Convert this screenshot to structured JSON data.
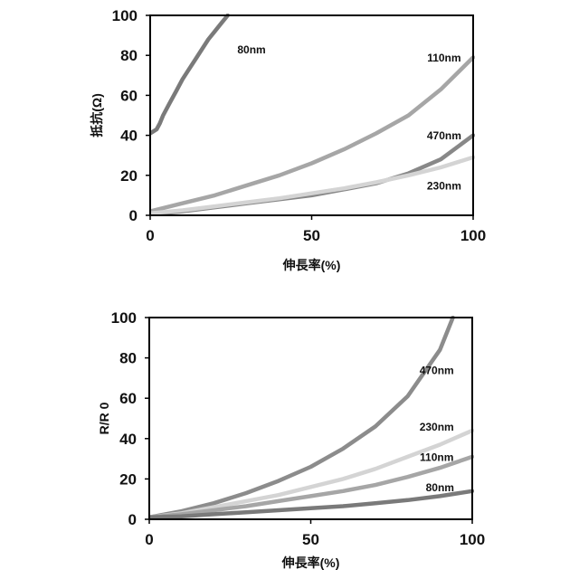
{
  "chart_data": [
    {
      "type": "line",
      "title": "",
      "xlabel": "伸長率(%)",
      "ylabel": "抵抗(Ω)",
      "xlim": [
        0,
        100
      ],
      "ylim": [
        0,
        100
      ],
      "xticks": [
        "0",
        "50",
        "100"
      ],
      "yticks": [
        "0",
        "20",
        "40",
        "60",
        "80",
        "100"
      ],
      "grid": false,
      "legend": "inline labels",
      "series": [
        {
          "name": "80nm",
          "color": "#7a7a7a",
          "x": [
            0,
            1,
            2,
            3,
            4,
            6,
            8,
            10,
            12,
            14,
            16,
            18,
            20,
            22,
            24
          ],
          "y": [
            41,
            42,
            43,
            46,
            50,
            56,
            62,
            68,
            73,
            78,
            83,
            88,
            92,
            96,
            100
          ]
        },
        {
          "name": "110nm",
          "color": "#a6a6a6",
          "x": [
            0,
            10,
            20,
            30,
            40,
            50,
            60,
            70,
            80,
            90,
            100
          ],
          "y": [
            2,
            6,
            10,
            15,
            20,
            26,
            33,
            41,
            50,
            63,
            79
          ]
        },
        {
          "name": "470nm",
          "color": "#888888",
          "x": [
            0,
            10,
            20,
            30,
            40,
            50,
            60,
            70,
            80,
            90,
            100
          ],
          "y": [
            0.5,
            2,
            4,
            6,
            8,
            10,
            13,
            16,
            21,
            28,
            40
          ]
        },
        {
          "name": "230nm",
          "color": "#d4d4d4",
          "x": [
            0,
            10,
            20,
            30,
            40,
            50,
            60,
            70,
            80,
            90,
            100
          ],
          "y": [
            1,
            2.5,
            4.5,
            6.5,
            8.5,
            11,
            13.5,
            16.5,
            20,
            24,
            29
          ]
        }
      ],
      "labels": [
        {
          "text": "80nm",
          "x": 27,
          "y": 81
        },
        {
          "text": "110nm",
          "x": 91,
          "y": 77
        },
        {
          "text": "470nm",
          "x": 91,
          "y": 38
        },
        {
          "text": "230nm",
          "x": 91,
          "y": 13
        }
      ]
    },
    {
      "type": "line",
      "title": "",
      "xlabel": "伸長率(%)",
      "ylabel": "R/R 0",
      "xlim": [
        0,
        100
      ],
      "ylim": [
        0,
        100
      ],
      "xticks": [
        "0",
        "50",
        "100"
      ],
      "yticks": [
        "0",
        "20",
        "40",
        "60",
        "80",
        "100"
      ],
      "grid": false,
      "legend": "inline labels",
      "series": [
        {
          "name": "470nm",
          "color": "#8c8c8c",
          "x": [
            0,
            10,
            20,
            30,
            40,
            50,
            60,
            70,
            80,
            90,
            94
          ],
          "y": [
            1,
            4,
            8,
            13,
            19,
            26,
            35,
            46,
            61,
            84,
            100
          ]
        },
        {
          "name": "230nm",
          "color": "#d4d4d4",
          "x": [
            0,
            10,
            20,
            30,
            40,
            50,
            60,
            70,
            80,
            90,
            100
          ],
          "y": [
            1,
            3,
            6,
            9,
            12,
            16,
            20,
            25,
            31,
            37,
            44
          ]
        },
        {
          "name": "110nm",
          "color": "#a6a6a6",
          "x": [
            0,
            10,
            20,
            30,
            40,
            50,
            60,
            70,
            80,
            90,
            100
          ],
          "y": [
            1,
            2.5,
            4.5,
            6.5,
            9,
            11.5,
            14,
            17,
            21,
            25.5,
            31
          ]
        },
        {
          "name": "80nm",
          "color": "#7a7a7a",
          "x": [
            0,
            10,
            20,
            30,
            40,
            50,
            60,
            70,
            80,
            90,
            100
          ],
          "y": [
            1,
            1.5,
            2.5,
            3.5,
            4.5,
            5.5,
            6.5,
            8,
            9.5,
            11.5,
            14
          ]
        }
      ],
      "labels": [
        {
          "text": "470nm",
          "x": 89,
          "y": 72
        },
        {
          "text": "230nm",
          "x": 89,
          "y": 44
        },
        {
          "text": "110nm",
          "x": 89,
          "y": 29
        },
        {
          "text": "80nm",
          "x": 90,
          "y": 14
        }
      ]
    }
  ]
}
